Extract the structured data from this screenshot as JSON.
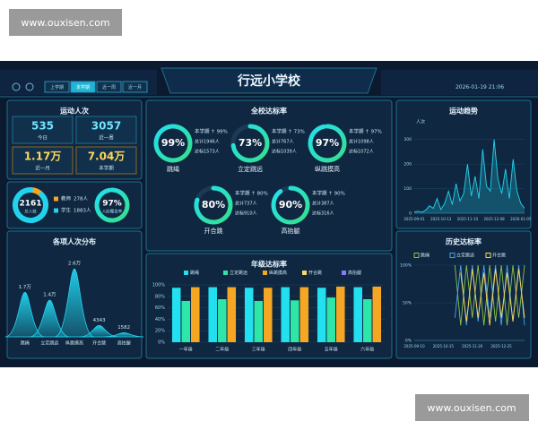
{
  "watermarks": [
    "www.ouxisen.com",
    "www.ouxisen.com"
  ],
  "header": {
    "title": "行远小学校",
    "tabs": [
      "上学期",
      "本学期",
      "近一周",
      "近一月"
    ],
    "datetime": "2026-01-19 21:06"
  },
  "counts": {
    "title": "运动人次",
    "items": [
      {
        "value": "535",
        "label": "今日"
      },
      {
        "value": "3057",
        "label": "近一周"
      },
      {
        "value": "1.17万",
        "label": "近一月"
      },
      {
        "value": "7.04万",
        "label": "本学期"
      }
    ]
  },
  "people": {
    "total": "2161",
    "total_label": "总人数",
    "legend": [
      {
        "label": "教师",
        "value": 278,
        "value_label": "278人",
        "color": "#f5a623"
      },
      {
        "label": "学生",
        "value": 1883,
        "value_label": "1883人",
        "color": "#22d3ee"
      }
    ],
    "rate": 97,
    "rate_label": "97%",
    "rate_name": "人脸覆盖率"
  },
  "rates": {
    "title": "全校达标率",
    "items": [
      {
        "name": "跳绳",
        "value": 99,
        "label": "99%",
        "lines": [
          "本学期 ↑ 99%",
          "总计1946人",
          "达标1573人"
        ]
      },
      {
        "name": "立定跳远",
        "value": 73,
        "label": "73%",
        "lines": [
          "本学期 ↑ 73%",
          "总计767人",
          "达标1039人"
        ]
      },
      {
        "name": "纵跳摸高",
        "value": 97,
        "label": "97%",
        "lines": [
          "本学期 ↑ 97%",
          "总计1098人",
          "达标1072人"
        ]
      },
      {
        "name": "开合跳",
        "value": 80,
        "label": "80%",
        "lines": [
          "本学期 ↑ 80%",
          "总计737人",
          "达标910人"
        ]
      },
      {
        "name": "高抬腿",
        "value": 90,
        "label": "90%",
        "lines": [
          "本学期 ↑ 90%",
          "总计387人",
          "达标316人"
        ]
      }
    ]
  },
  "chart_data": [
    {
      "type": "area",
      "title": "各项人次分布",
      "color": "#22d3ee",
      "categories": [
        "跳绳",
        "立定跳远",
        "纵跳摸高",
        "开合跳",
        "高抬腿"
      ],
      "values": [
        17000,
        14000,
        26000,
        4343,
        1582
      ],
      "value_labels": [
        "1.7万",
        "1.4万",
        "2.6万",
        "4343",
        "1582"
      ]
    },
    {
      "type": "bar",
      "title": "年级达标率",
      "categories": [
        "一年级",
        "二年级",
        "三年级",
        "四年级",
        "五年级",
        "六年级"
      ],
      "series": [
        {
          "name": "跳绳",
          "color": "#22e0f0",
          "values": [
            95,
            96,
            95,
            96,
            95,
            96
          ]
        },
        {
          "name": "立定跳远",
          "color": "#2ee6a8",
          "values": [
            72,
            75,
            72,
            73,
            78,
            75
          ]
        },
        {
          "name": "纵跳摸高",
          "color": "#f5a623",
          "values": [
            96,
            96,
            95,
            96,
            97,
            97
          ]
        },
        {
          "name": "开合跳",
          "color": "#f5d76e",
          "values": [
            null,
            null,
            null,
            null,
            null,
            null
          ]
        },
        {
          "name": "高抬腿",
          "color": "#8b7cf6",
          "values": [
            null,
            null,
            null,
            null,
            null,
            null
          ]
        }
      ],
      "ylim": [
        0,
        100
      ],
      "yticks": [
        {
          "value": 0,
          "label": "0%"
        },
        {
          "value": 20,
          "label": "20%"
        },
        {
          "value": 40,
          "label": "40%"
        },
        {
          "value": 60,
          "label": "60%"
        },
        {
          "value": 80,
          "label": "80%"
        },
        {
          "value": 100,
          "label": "100%"
        }
      ],
      "grid": true
    },
    {
      "type": "line",
      "title": "运动趋势",
      "y_label": "人次",
      "color": "#22d3ee",
      "categories": [
        "2025-09-01",
        null,
        null,
        null,
        null,
        null,
        null,
        "2025-10-13",
        null,
        null,
        null,
        null,
        null,
        null,
        "2025-11-10",
        null,
        null,
        null,
        null,
        null,
        null,
        "2025-12-08",
        null,
        null,
        null,
        null,
        null,
        null,
        "2026-01-05",
        null
      ],
      "values": [
        5,
        8,
        4,
        12,
        30,
        20,
        60,
        15,
        40,
        90,
        35,
        120,
        50,
        80,
        200,
        70,
        150,
        60,
        260,
        110,
        90,
        300,
        140,
        80,
        180,
        60,
        220,
        90,
        40,
        20
      ],
      "ylim": [
        0,
        350
      ],
      "yticks": [
        0,
        100,
        200,
        300
      ],
      "grid": true
    },
    {
      "type": "line",
      "title": "历史达标率",
      "categories": [
        "2025-09-10",
        null,
        null,
        null,
        null,
        "2025-10-15",
        null,
        null,
        null,
        null,
        "2025-11-20",
        null,
        null,
        null,
        null,
        "2025-12-25",
        null,
        null,
        null,
        null
      ],
      "series": [
        {
          "name": "跳绳",
          "color": "#8bc34a",
          "values": [
            null,
            null,
            null,
            null,
            null,
            null,
            null,
            100,
            20,
            100,
            30,
            100,
            20,
            100,
            25,
            100,
            20,
            100,
            30,
            100
          ]
        },
        {
          "name": "立定跳远",
          "color": "#42a5f5",
          "values": [
            null,
            null,
            null,
            null,
            null,
            null,
            null,
            30,
            100,
            20,
            100,
            25,
            100,
            30,
            100,
            20,
            100,
            25,
            100,
            20
          ]
        },
        {
          "name": "开合跳",
          "color": "#ffd54f",
          "values": [
            null,
            null,
            null,
            null,
            null,
            null,
            null,
            null,
            90,
            25,
            95,
            30,
            90,
            20,
            95,
            30,
            90,
            25,
            95,
            30
          ]
        }
      ],
      "ylim": [
        0,
        100
      ],
      "yticks": [
        {
          "value": 0,
          "label": "0%"
        },
        {
          "value": 50,
          "label": "50%"
        },
        {
          "value": 100,
          "label": "100%"
        }
      ],
      "grid": true
    }
  ]
}
